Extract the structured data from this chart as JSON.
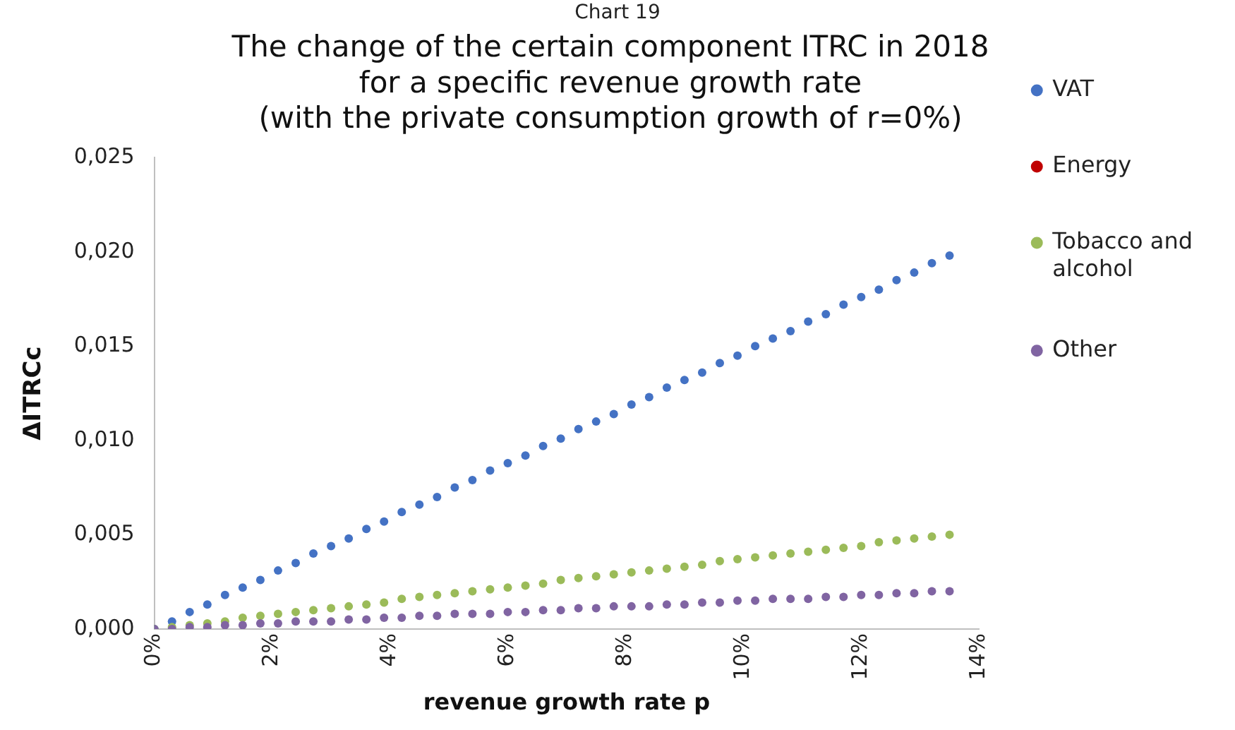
{
  "chart_data": {
    "type": "scatter",
    "title": [
      "The change of the certain component ITRC in 2018",
      "for a specific revenue growth rate",
      "(with the private consumption growth of r=0%)"
    ],
    "annotations": [
      "Chart 19"
    ],
    "xlabel": "revenue growth rate p",
    "ylabel": "ΔITRCc",
    "x": [
      0,
      0.3,
      0.6,
      0.9,
      1.2,
      1.5,
      1.8,
      2.1,
      2.4,
      2.7,
      3,
      3.3,
      3.6,
      3.9,
      4.2,
      4.5,
      4.8,
      5.1,
      5.4,
      5.7,
      6,
      6.3,
      6.6,
      6.9,
      7.2,
      7.5,
      7.8,
      8.1,
      8.4,
      8.7,
      9,
      9.3,
      9.6,
      9.9,
      10.2,
      10.5,
      10.8,
      11.1,
      11.4,
      11.7,
      12,
      12.3,
      12.6,
      12.9,
      13.2,
      13.5
    ],
    "series": [
      {
        "name": "VAT",
        "color": "#4472c4",
        "values": [
          0,
          0.0004,
          0.0009,
          0.0013,
          0.0018,
          0.0022,
          0.0026,
          0.0031,
          0.0035,
          0.004,
          0.0044,
          0.0048,
          0.0053,
          0.0057,
          0.0062,
          0.0066,
          0.007,
          0.0075,
          0.0079,
          0.0084,
          0.0088,
          0.0092,
          0.0097,
          0.0101,
          0.0106,
          0.011,
          0.0114,
          0.0119,
          0.0123,
          0.0128,
          0.0132,
          0.0136,
          0.0141,
          0.0145,
          0.015,
          0.0154,
          0.0158,
          0.0163,
          0.0167,
          0.0172,
          0.0176,
          0.018,
          0.0185,
          0.0189,
          0.0194,
          0.0198
        ]
      },
      {
        "name": "Energy",
        "color": "#c00000",
        "values": [
          null,
          null,
          null,
          null,
          null,
          null,
          null,
          null,
          null,
          null,
          null,
          null,
          null,
          null,
          null,
          null,
          null,
          null,
          null,
          null,
          null,
          null,
          null,
          null,
          null,
          null,
          null,
          null,
          null,
          null,
          null,
          null,
          null,
          null,
          null,
          null,
          null,
          null,
          null,
          null,
          null,
          null,
          null,
          null,
          null,
          null
        ]
      },
      {
        "name": "Tobacco and alcohol",
        "color": "#9bbb59",
        "values": [
          0,
          0.0001,
          0.0002,
          0.0003,
          0.0004,
          0.0006,
          0.0007,
          0.0008,
          0.0009,
          0.001,
          0.0011,
          0.0012,
          0.0013,
          0.0014,
          0.0016,
          0.0017,
          0.0018,
          0.0019,
          0.002,
          0.0021,
          0.0022,
          0.0023,
          0.0024,
          0.0026,
          0.0027,
          0.0028,
          0.0029,
          0.003,
          0.0031,
          0.0032,
          0.0033,
          0.0034,
          0.0036,
          0.0037,
          0.0038,
          0.0039,
          0.004,
          0.0041,
          0.0042,
          0.0043,
          0.0044,
          0.0046,
          0.0047,
          0.0048,
          0.0049,
          0.005
        ]
      },
      {
        "name": "Other",
        "color": "#8064a2",
        "values": [
          0,
          0,
          0.0001,
          0.0001,
          0.0002,
          0.0002,
          0.0003,
          0.0003,
          0.0004,
          0.0004,
          0.0004,
          0.0005,
          0.0005,
          0.0006,
          0.0006,
          0.0007,
          0.0007,
          0.0008,
          0.0008,
          0.0008,
          0.0009,
          0.0009,
          0.001,
          0.001,
          0.0011,
          0.0011,
          0.0012,
          0.0012,
          0.0012,
          0.0013,
          0.0013,
          0.0014,
          0.0014,
          0.0015,
          0.0015,
          0.0016,
          0.0016,
          0.0016,
          0.0017,
          0.0017,
          0.0018,
          0.0018,
          0.0019,
          0.0019,
          0.002,
          0.002
        ]
      }
    ],
    "xlim": [
      0,
      14
    ],
    "xticks": [
      {
        "value": 0,
        "label": "0%"
      },
      {
        "value": 2,
        "label": "2%"
      },
      {
        "value": 4,
        "label": "4%"
      },
      {
        "value": 6,
        "label": "6%"
      },
      {
        "value": 8,
        "label": "8%"
      },
      {
        "value": 10,
        "label": "10%"
      },
      {
        "value": 12,
        "label": "12%"
      },
      {
        "value": 14,
        "label": "14%"
      }
    ],
    "ylim": [
      0,
      0.025
    ],
    "yticks": [
      {
        "value": 0,
        "label": "0,000"
      },
      {
        "value": 0.005,
        "label": "0,005"
      },
      {
        "value": 0.01,
        "label": "0,010"
      },
      {
        "value": 0.015,
        "label": "0,015"
      },
      {
        "value": 0.02,
        "label": "0,020"
      },
      {
        "value": 0.025,
        "label": "0,025"
      }
    ],
    "grid": false,
    "legend": "right",
    "marker": "circle"
  }
}
